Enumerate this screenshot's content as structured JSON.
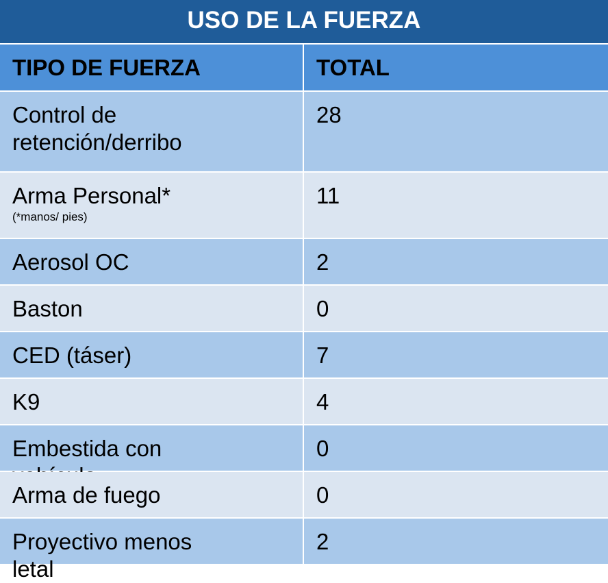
{
  "table": {
    "title": "USO DE LA FUERZA",
    "header": [
      "TIPO DE FUERZA",
      "TOTAL"
    ],
    "rows": [
      {
        "tipo": "Control de retención/derribo",
        "total": 28
      },
      {
        "tipo": "Arma Personal*",
        "nota": "(*manos/ pies)",
        "total": 11
      },
      {
        "tipo": "Aerosol OC",
        "total": 2
      },
      {
        "tipo": "Baston",
        "total": 0
      },
      {
        "tipo": "CED (táser)",
        "total": 7
      },
      {
        "tipo": "K9",
        "total": 4
      },
      {
        "tipo": "Embestida con vehículo",
        "total": 0
      },
      {
        "tipo": "Arma de fuego",
        "total": 0
      },
      {
        "tipo": "Proyectivo menos letal",
        "total": 2
      }
    ]
  }
}
